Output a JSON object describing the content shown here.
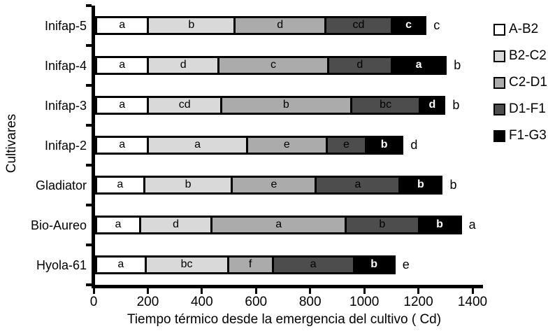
{
  "chart_data": {
    "type": "stacked_bar_horizontal",
    "xlabel": "Tiempo térmico desde la emergencia del cultivo ( Cd)",
    "ylabel": "Cultivares",
    "xlim": [
      0,
      1400
    ],
    "x_ticks": [
      0,
      200,
      400,
      600,
      800,
      1000,
      1200,
      1400
    ],
    "grid": false,
    "legend_position": "right",
    "categories": [
      "Inifap-5",
      "Inifap-4",
      "Inifap-3",
      "Inifap-2",
      "Gladiator",
      "Bio-Aureo",
      "Hyola-61"
    ],
    "series": [
      {
        "name": "A-B2",
        "color": "#ffffff",
        "text_color": "#000000",
        "values": [
          200,
          200,
          200,
          200,
          185,
          170,
          190
        ],
        "segment_labels": [
          "a",
          "a",
          "a",
          "a",
          "a",
          "a",
          "a"
        ]
      },
      {
        "name": "B2-C2",
        "color": "#d9d9d9",
        "text_color": "#000000",
        "values": [
          320,
          260,
          270,
          365,
          325,
          265,
          305
        ],
        "segment_labels": [
          "b",
          "d",
          "cd",
          "a",
          "b",
          "d",
          "bc"
        ]
      },
      {
        "name": "C2-D1",
        "color": "#ababab",
        "text_color": "#000000",
        "values": [
          335,
          405,
          480,
          295,
          310,
          495,
          165
        ],
        "segment_labels": [
          "d",
          "c",
          "b",
          "e",
          "e",
          "a",
          "f"
        ]
      },
      {
        "name": "D1-F1",
        "color": "#4d4d4d",
        "text_color": "#000000",
        "values": [
          245,
          235,
          255,
          145,
          310,
          270,
          300
        ],
        "segment_labels": [
          "cd",
          "d",
          "bc",
          "e",
          "a",
          "b",
          "a"
        ]
      },
      {
        "name": "F1-G3",
        "color": "#000000",
        "text_color": "#ffffff",
        "values": [
          125,
          200,
          90,
          135,
          155,
          155,
          150
        ],
        "segment_labels": [
          "c",
          "a",
          "d",
          "b",
          "b",
          "b",
          "b"
        ]
      }
    ],
    "bar_totals": [
      1225,
      1300,
      1295,
      1140,
      1285,
      1355,
      1110
    ],
    "bar_end_letters": [
      "c",
      "b",
      "b",
      "d",
      "b",
      "a",
      "e"
    ]
  }
}
